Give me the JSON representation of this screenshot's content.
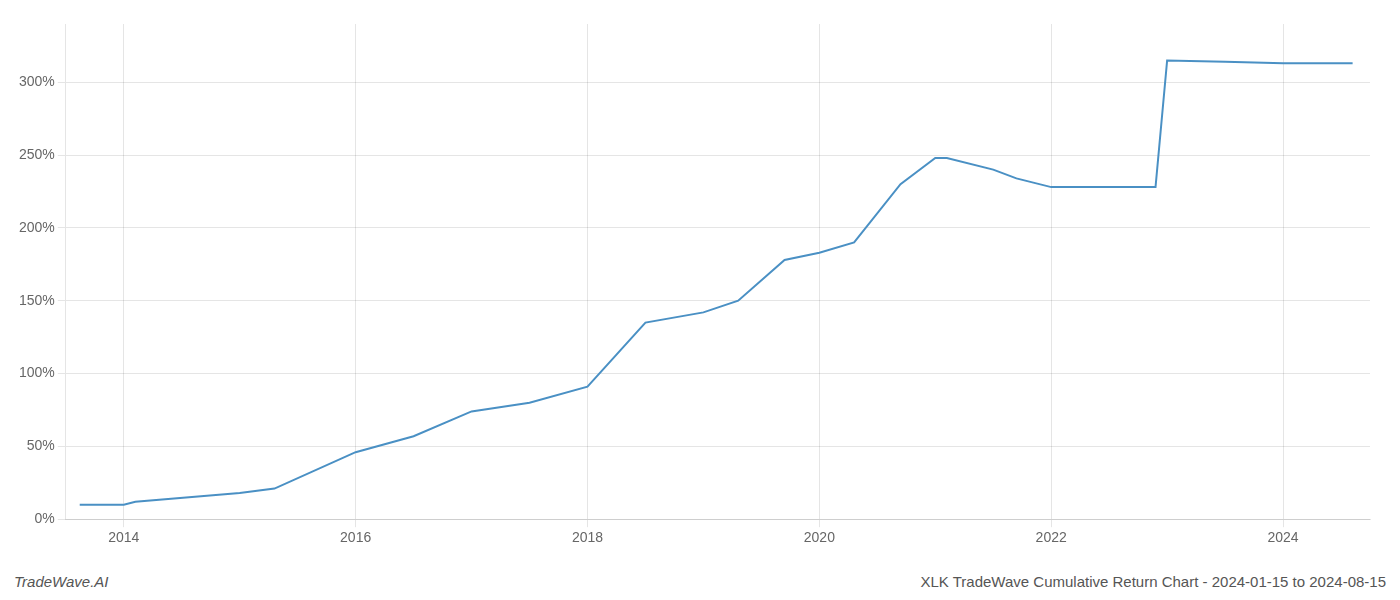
{
  "chart_data": {
    "type": "line",
    "x": [
      2013.62,
      2014.0,
      2014.1,
      2015.0,
      2015.3,
      2016.0,
      2016.5,
      2017.0,
      2017.5,
      2018.0,
      2018.5,
      2019.0,
      2019.3,
      2019.7,
      2020.0,
      2020.3,
      2020.7,
      2021.0,
      2021.1,
      2021.5,
      2021.7,
      2022.0,
      2022.1,
      2022.9,
      2023.0,
      2023.5,
      2024.0,
      2024.6
    ],
    "values": [
      10,
      10,
      12,
      18,
      21,
      46,
      57,
      74,
      80,
      91,
      135,
      142,
      150,
      178,
      183,
      190,
      230,
      248,
      248,
      240,
      234,
      228,
      228,
      228,
      315,
      314,
      313,
      313
    ],
    "color": "#4a90c4",
    "xlim": [
      2013.5,
      2024.75
    ],
    "xticks": [
      2014,
      2016,
      2018,
      2020,
      2022,
      2024
    ],
    "ylim": [
      0,
      340
    ],
    "yticks": [
      {
        "value": 0,
        "label": "0%"
      },
      {
        "value": 50,
        "label": "50%"
      },
      {
        "value": 100,
        "label": "100%"
      },
      {
        "value": 150,
        "label": "150%"
      },
      {
        "value": 200,
        "label": "200%"
      },
      {
        "value": 250,
        "label": "250%"
      },
      {
        "value": 300,
        "label": "300%"
      }
    ],
    "grid": true,
    "annotations": [
      "TradeWave.AI",
      "XLK TradeWave Cumulative Return Chart - 2024-01-15 to 2024-08-15"
    ]
  }
}
